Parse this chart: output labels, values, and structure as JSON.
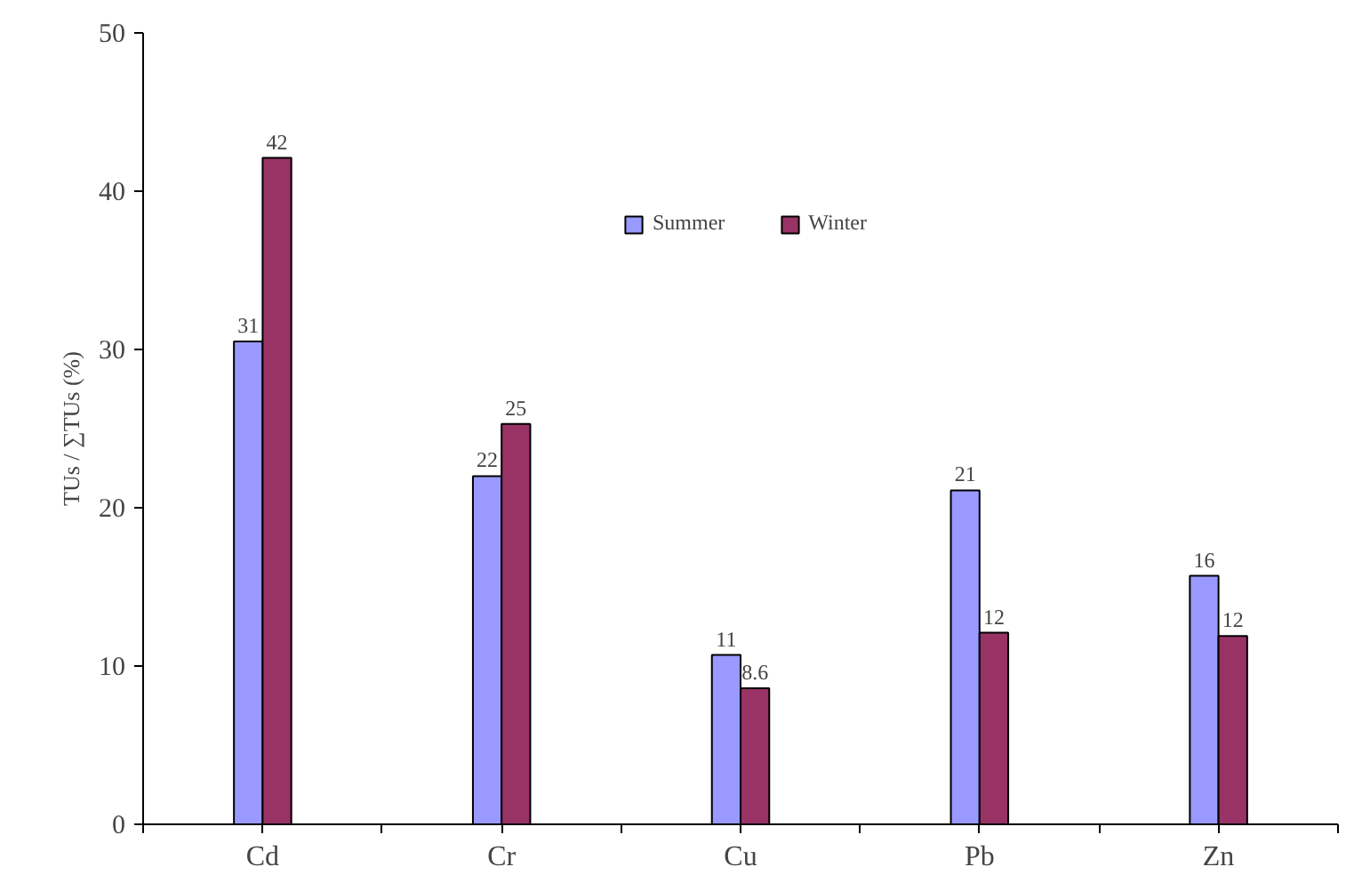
{
  "chart_data": {
    "type": "bar",
    "ylabel": "TUs / ∑TUs (%)",
    "categories": [
      "Cd",
      "Cr",
      "Cu",
      "Pb",
      "Zn"
    ],
    "series": [
      {
        "name": "Summer",
        "color": "#9999ff",
        "values": [
          30.5,
          22.0,
          10.7,
          21.1,
          15.7
        ],
        "value_labels": [
          "31",
          "22",
          "11",
          "21",
          "16"
        ]
      },
      {
        "name": "Winter",
        "color": "#993366",
        "values": [
          42.1,
          25.3,
          8.6,
          12.1,
          11.9
        ],
        "value_labels": [
          "42",
          "25",
          "8.6",
          "12",
          "12"
        ]
      }
    ],
    "ylim": [
      0,
      50
    ],
    "yticks": [
      0,
      10,
      20,
      30,
      40,
      50
    ],
    "grid": false,
    "legend": "top"
  }
}
